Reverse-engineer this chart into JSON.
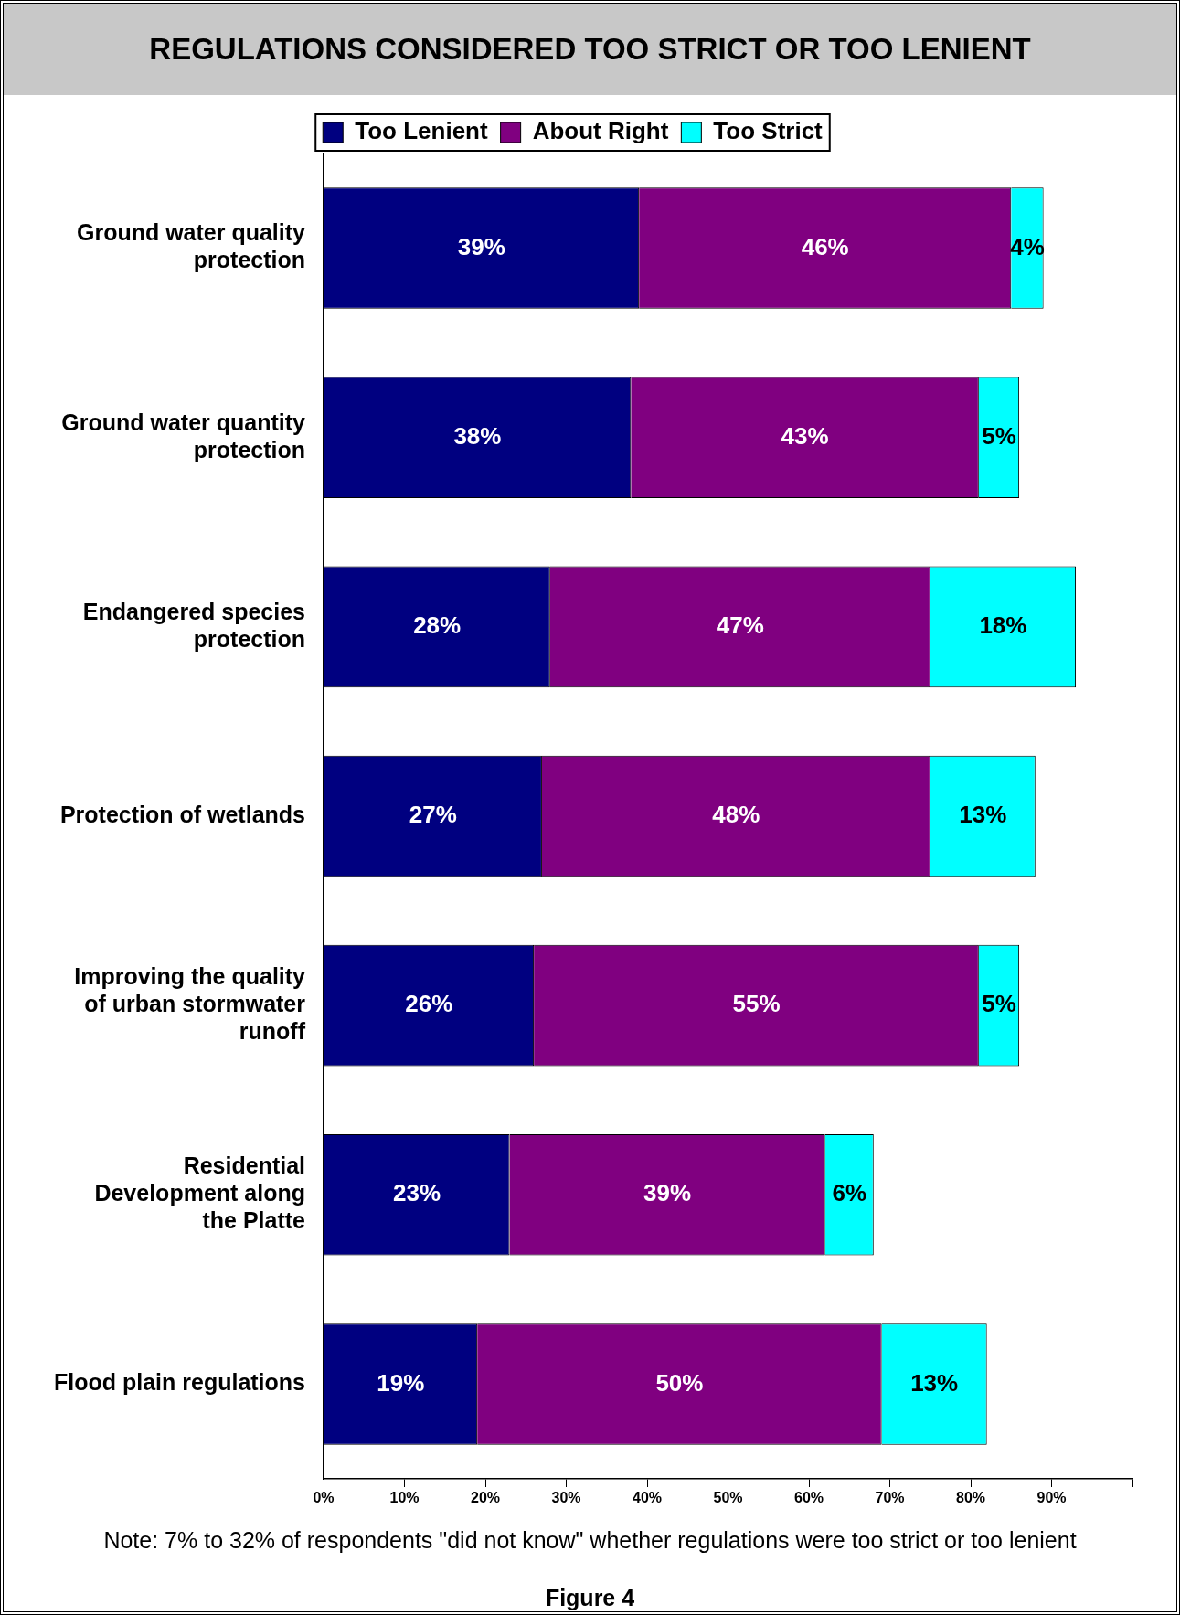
{
  "chart_data": {
    "type": "bar",
    "orientation": "horizontal",
    "stacked": true,
    "title": "REGULATIONS CONSIDERED TOO STRICT OR TOO LENIENT",
    "categories": [
      "Ground water quality protection",
      "Ground water quantity protection",
      "Endangered species protection",
      "Protection of wetlands",
      "Improving the quality of urban stormwater runoff",
      "Residential Development along the Platte",
      "Flood plain regulations"
    ],
    "series": [
      {
        "name": "Too Lenient",
        "color": "#000080",
        "values": [
          39,
          38,
          28,
          27,
          26,
          23,
          19
        ],
        "value_labels": [
          "39%",
          "38%",
          "28%",
          "27%",
          "26%",
          "23%",
          "19%"
        ]
      },
      {
        "name": "About Right",
        "color": "#800080",
        "values": [
          46,
          43,
          47,
          48,
          55,
          39,
          50
        ],
        "value_labels": [
          "46%",
          "43%",
          "47%",
          "48%",
          "55%",
          "39%",
          "50%"
        ]
      },
      {
        "name": "Too Strict",
        "color": "#00ffff",
        "values": [
          4,
          5,
          18,
          13,
          5,
          6,
          13
        ],
        "value_labels": [
          "4%",
          "5%",
          "18%",
          "13%",
          "5%",
          "6%",
          "13%"
        ]
      }
    ],
    "xlim": [
      0,
      100
    ],
    "xticks": [
      {
        "value": 0,
        "label": "0%"
      },
      {
        "value": 10,
        "label": "10%"
      },
      {
        "value": 20,
        "label": "20%"
      },
      {
        "value": 30,
        "label": "30%"
      },
      {
        "value": 40,
        "label": "40%"
      },
      {
        "value": 50,
        "label": "50%"
      },
      {
        "value": 60,
        "label": "60%"
      },
      {
        "value": 70,
        "label": "70%"
      },
      {
        "value": 80,
        "label": "80%"
      },
      {
        "value": 90,
        "label": "90%"
      },
      {
        "value": 100,
        "label": null
      }
    ],
    "grid": false,
    "legend": "top",
    "annotations": [
      "Note: 7% to 32% of respondents \"did not know\" whether regulations were too strict or too lenient",
      "Figure 4"
    ]
  }
}
